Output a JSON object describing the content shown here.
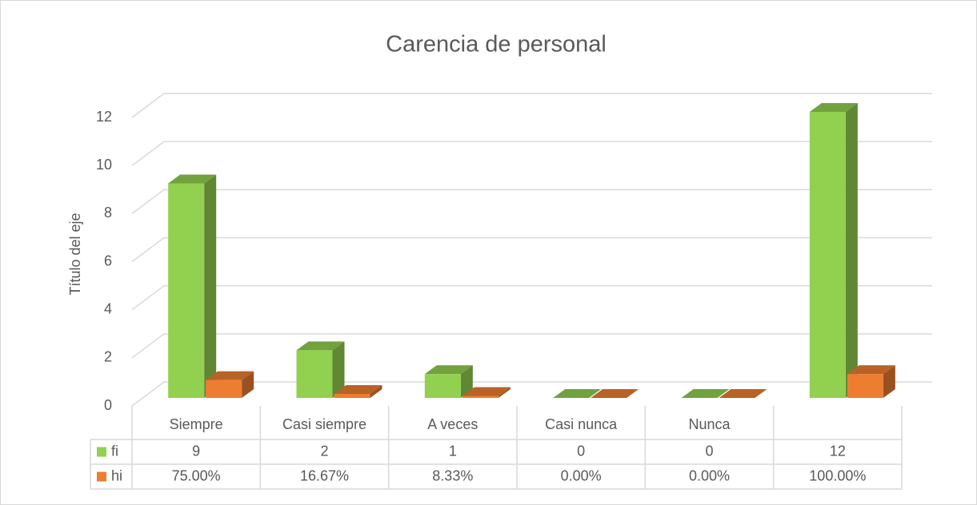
{
  "chart_data": {
    "type": "bar3d",
    "title": "Carencia de personal",
    "y_label": "Título del eje",
    "categories": [
      "Siempre",
      "Casi siempre",
      "A veces",
      "Casi nunca",
      "Nunca",
      null
    ],
    "series": [
      {
        "name": "fi",
        "color": "#92d050",
        "values": [
          9,
          2,
          1,
          0,
          0,
          12
        ]
      },
      {
        "name": "hi",
        "color": "#ed7d31",
        "values": [
          0.75,
          0.1667,
          0.0833,
          0,
          0,
          1
        ],
        "value_labels": [
          "75.00%",
          "16.67%",
          "8.33%",
          "0.00%",
          "0.00%",
          "100.00%"
        ]
      }
    ],
    "ylim": [
      0,
      12
    ],
    "yticks": [
      0,
      2,
      4,
      6,
      8,
      10,
      12
    ],
    "grid": true,
    "data_table": true
  }
}
